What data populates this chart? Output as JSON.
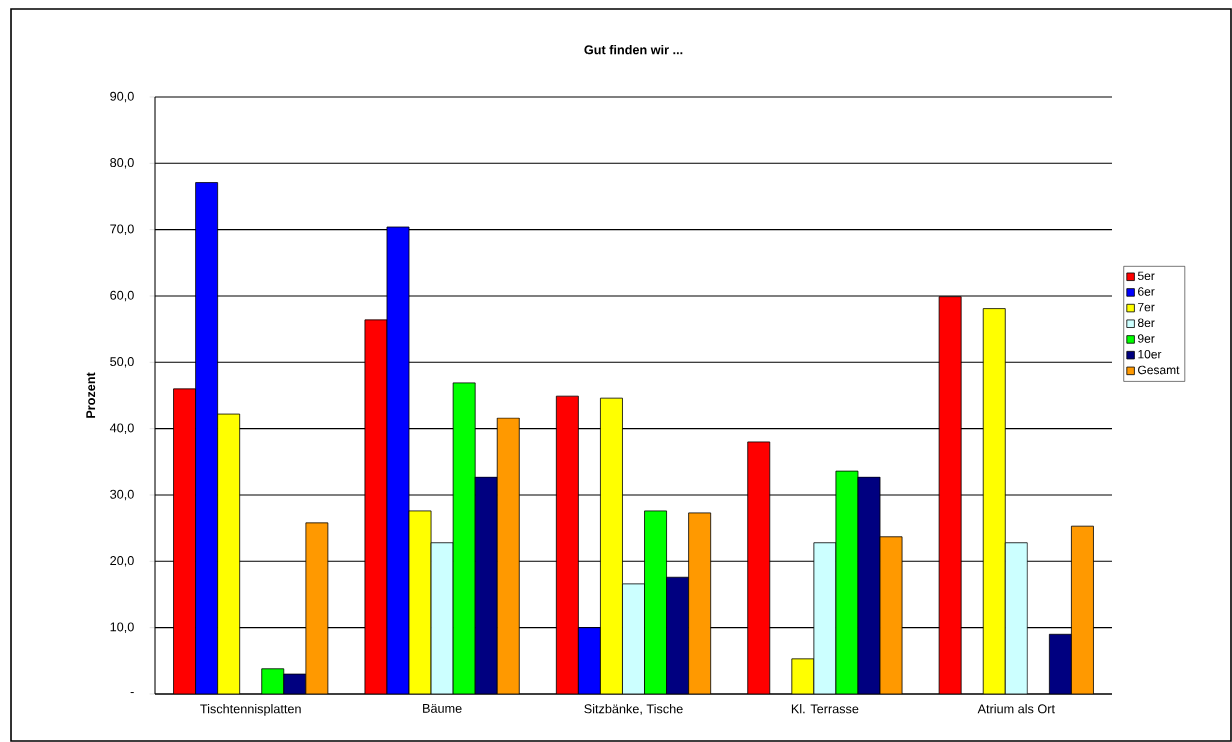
{
  "chart_data": {
    "type": "bar",
    "title": "Gut finden wir ...",
    "ylabel": "Prozent",
    "categories": [
      "Tischtennisplatten",
      "Bäume",
      "Sitzbänke, Tische",
      "Kl. Terrasse",
      "Atrium als Ort"
    ],
    "series": [
      {
        "name": "5er",
        "color": "#ff0000",
        "values": [
          46.0,
          56.4,
          44.9,
          38.0,
          59.9
        ]
      },
      {
        "name": "6er",
        "color": "#0000ff",
        "values": [
          77.1,
          70.4,
          10.0,
          null,
          null
        ]
      },
      {
        "name": "7er",
        "color": "#ffff00",
        "values": [
          42.2,
          27.6,
          44.6,
          5.3,
          58.1
        ]
      },
      {
        "name": "8er",
        "color": "#ccffff",
        "values": [
          null,
          22.8,
          16.6,
          22.8,
          22.8
        ]
      },
      {
        "name": "9er",
        "color": "#00ff00",
        "values": [
          3.8,
          46.9,
          27.6,
          33.6,
          null
        ]
      },
      {
        "name": "10er",
        "color": "#000080",
        "values": [
          3.0,
          32.7,
          17.6,
          32.7,
          9.0
        ]
      },
      {
        "name": "Gesamt",
        "color": "#ff9900",
        "values": [
          25.8,
          41.6,
          27.3,
          23.7,
          25.3
        ]
      }
    ],
    "ylim": [
      0,
      90
    ],
    "yticks": [
      {
        "value": 0,
        "label": "-"
      },
      {
        "value": 10,
        "label": "10,0"
      },
      {
        "value": 20,
        "label": "20,0"
      },
      {
        "value": 30,
        "label": "30,0"
      },
      {
        "value": 40,
        "label": "40,0"
      },
      {
        "value": 50,
        "label": "50,0"
      },
      {
        "value": 60,
        "label": "60,0"
      },
      {
        "value": 70,
        "label": "70,0"
      },
      {
        "value": 80,
        "label": "80,0"
      },
      {
        "value": 90,
        "label": "90,0"
      }
    ],
    "grid": "y",
    "legend": "right"
  }
}
